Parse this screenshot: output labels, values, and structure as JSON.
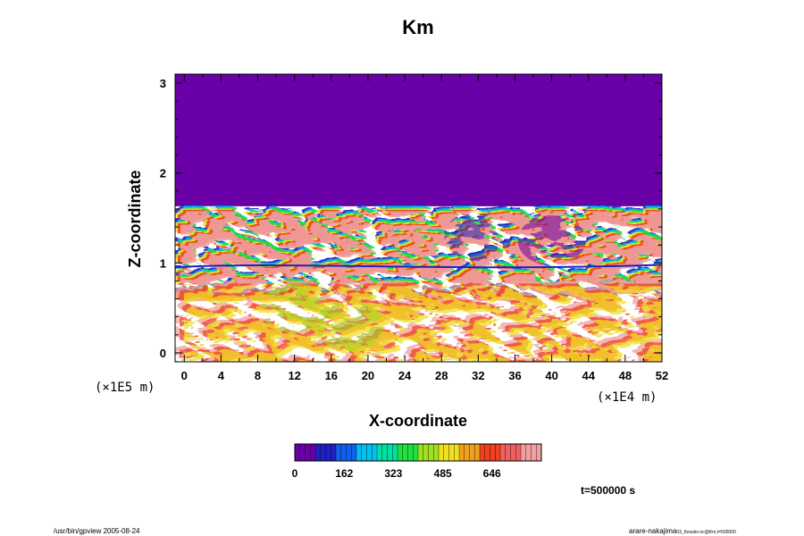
{
  "chart_data": {
    "type": "heatmap",
    "title": "Km",
    "xlabel": "X-coordinate",
    "ylabel": "Z-coordinate",
    "x_scale_note": "(×1E4 m)",
    "y_scale_note": "(×1E5 m)",
    "xlim": [
      -1,
      52
    ],
    "ylim": [
      -0.1,
      3.1
    ],
    "x_ticks": [
      "0",
      "4",
      "8",
      "12",
      "16",
      "20",
      "24",
      "28",
      "32",
      "36",
      "40",
      "44",
      "48",
      "52"
    ],
    "y_ticks": [
      "0",
      "1",
      "2",
      "3"
    ],
    "colorbar": {
      "min": 0,
      "max": 808,
      "tick_labels": [
        "0",
        "162",
        "323",
        "485",
        "646"
      ],
      "colors": [
        "#6a00a8",
        "#2020c0",
        "#1060f0",
        "#00c0f0",
        "#00e0a0",
        "#20e040",
        "#a0e020",
        "#f0e020",
        "#f0a020",
        "#f04020",
        "#f06060",
        "#f0a0a0"
      ]
    },
    "time_label": "t=500000 s",
    "fields": {
      "top_uniform_level": 0,
      "top_region_z": [
        1.65,
        3.1
      ],
      "background_value": 808,
      "turbulent_band_z": [
        0.65,
        1.65
      ],
      "strong_features": [
        {
          "x": 12,
          "z": 0.5,
          "value": 450
        },
        {
          "x": 18,
          "z": 0.3,
          "value": 420
        },
        {
          "x": 32,
          "z": 1.3,
          "value": 100
        },
        {
          "x": 40,
          "z": 1.25,
          "value": 60
        }
      ]
    }
  },
  "footer": {
    "left": "/usr/bin/gpview 2005-08-24",
    "right": "arare-nakajima",
    "right_small": "03_Kessler.nc@Km,t=500000"
  }
}
